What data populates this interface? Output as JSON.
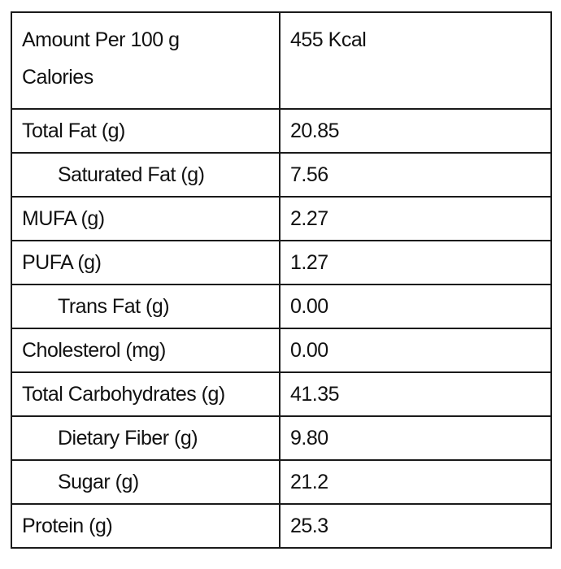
{
  "table": {
    "rows": [
      [
        [
          "Amount Per 100 g",
          "Calories"
        ],
        "455 Kcal"
      ],
      [
        "Total Fat (g)",
        "20.85"
      ],
      [
        "Saturated Fat (g)",
        "7.56"
      ],
      [
        "MUFA (g)",
        "2.27"
      ],
      [
        "PUFA (g)",
        "1.27"
      ],
      [
        "Trans Fat (g)",
        "0.00"
      ],
      [
        "Cholesterol (mg)",
        "0.00"
      ],
      [
        "Total Carbohydrates (g)",
        "41.35"
      ],
      [
        "Dietary Fiber (g)",
        "9.80"
      ],
      [
        "Sugar (g)",
        "21.2"
      ],
      [
        "Protein (g)",
        "25.3"
      ]
    ]
  }
}
